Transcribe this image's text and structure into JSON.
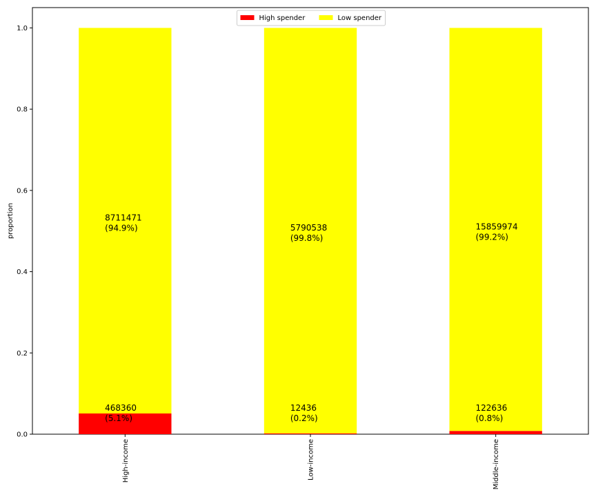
{
  "chart_data": {
    "type": "bar",
    "stacked": true,
    "categories": [
      "High-income",
      "Low-income",
      "Middle-income"
    ],
    "series": [
      {
        "name": "High spender",
        "color": "#ff0000",
        "values": [
          0.051,
          0.002,
          0.008
        ],
        "counts": [
          "468360",
          "12436",
          "122636"
        ],
        "percents": [
          "(5.1%)",
          "(0.2%)",
          "(0.8%)"
        ]
      },
      {
        "name": "Low spender",
        "color": "#ffff00",
        "values": [
          0.949,
          0.998,
          0.992
        ],
        "counts": [
          "8711471",
          "5790538",
          "15859974"
        ],
        "percents": [
          "(94.9%)",
          "(99.8%)",
          "(99.2%)"
        ]
      }
    ],
    "ylabel": "proportion",
    "xlabel": "",
    "ylim": [
      0,
      1.05
    ],
    "yticks": [
      "0.0",
      "0.2",
      "0.4",
      "0.6",
      "0.8",
      "1.0"
    ],
    "legend": "upper-center",
    "grid": false
  }
}
